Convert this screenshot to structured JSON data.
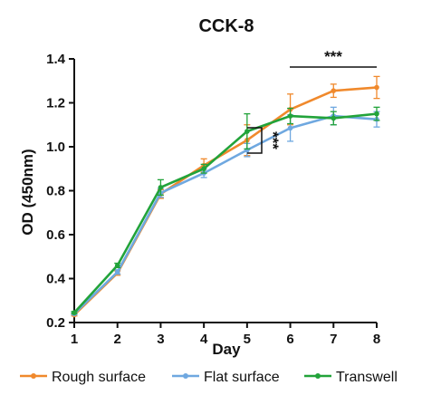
{
  "chart_data": {
    "type": "line",
    "title": "CCK-8",
    "xlabel": "Day",
    "ylabel": "OD (450nm)",
    "x": [
      1,
      2,
      3,
      4,
      5,
      6,
      7,
      8
    ],
    "xlim": [
      1,
      8
    ],
    "ylim": [
      0.2,
      1.4
    ],
    "yticks": [
      "0.2",
      "0.4",
      "0.6",
      "0.8",
      "1.0",
      "1.2",
      "1.4"
    ],
    "xticks": [
      "1",
      "2",
      "3",
      "4",
      "5",
      "6",
      "7",
      "8"
    ],
    "grid": false,
    "legend_position": "bottom",
    "series": [
      {
        "name": "Rough surface",
        "color": "#f0892c",
        "values": [
          0.235,
          0.425,
          0.785,
          0.915,
          1.03,
          1.17,
          1.255,
          1.27
        ],
        "errors": [
          0.005,
          0.01,
          0.02,
          0.03,
          0.07,
          0.07,
          0.03,
          0.05
        ]
      },
      {
        "name": "Flat surface",
        "color": "#6fa8e0",
        "values": [
          0.24,
          0.43,
          0.79,
          0.88,
          0.985,
          1.085,
          1.14,
          1.125
        ],
        "errors": [
          0.005,
          0.01,
          0.02,
          0.02,
          0.03,
          0.06,
          0.04,
          0.035
        ]
      },
      {
        "name": "Transwell",
        "color": "#22a33a",
        "values": [
          0.245,
          0.46,
          0.815,
          0.9,
          1.07,
          1.14,
          1.13,
          1.15
        ],
        "errors": [
          0.005,
          0.01,
          0.035,
          0.02,
          0.08,
          0.035,
          0.03,
          0.03
        ]
      }
    ],
    "annotations": [
      {
        "text": "***",
        "note_position": "bracket over days 6-8"
      },
      {
        "text": "***",
        "note_position": "vertical bracket at day 5, rotated"
      }
    ]
  }
}
